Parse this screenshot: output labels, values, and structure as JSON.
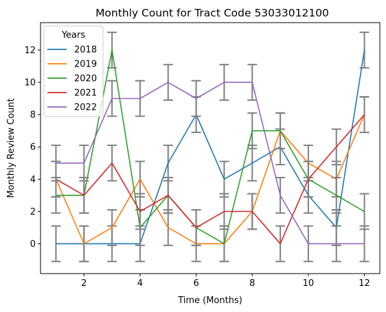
{
  "chart_data": {
    "type": "line",
    "title": "Monthly Count for Tract Code 53033012100",
    "xlabel": "Time (Months)",
    "ylabel": "Monthly Review Count",
    "x": [
      1,
      2,
      3,
      4,
      5,
      6,
      7,
      8,
      9,
      10,
      11,
      12
    ],
    "xlim": [
      0.45,
      12.55
    ],
    "ylim": [
      -1.85,
      13.7
    ],
    "xticks": [
      2,
      4,
      6,
      8,
      10,
      12
    ],
    "yticks": [
      0,
      2,
      4,
      6,
      8,
      10,
      12
    ],
    "grid": false,
    "legend": {
      "title": "Years",
      "placement": "top-left"
    },
    "error_bars": {
      "color": "#808080",
      "half_width": 1.1
    },
    "series": [
      {
        "name": "2018",
        "color": "#1f77b4",
        "values": [
          0,
          0,
          0,
          0,
          5,
          8,
          4,
          5,
          6,
          3,
          1,
          12
        ]
      },
      {
        "name": "2019",
        "color": "#ff7f0e",
        "values": [
          4,
          0,
          1,
          4,
          1,
          0,
          0,
          2,
          7,
          5,
          4,
          8
        ]
      },
      {
        "name": "2020",
        "color": "#2ca02c",
        "values": [
          3,
          3,
          12,
          1,
          3,
          1,
          0,
          7,
          7,
          4,
          3,
          2
        ]
      },
      {
        "name": "2021",
        "color": "#d62728",
        "values": [
          4,
          3,
          5,
          2,
          3,
          1,
          2,
          2,
          0,
          4,
          6,
          8
        ]
      },
      {
        "name": "2022",
        "color": "#9467bd",
        "values": [
          5,
          5,
          9,
          9,
          10,
          9,
          10,
          10,
          3,
          0,
          0,
          0
        ]
      }
    ]
  }
}
